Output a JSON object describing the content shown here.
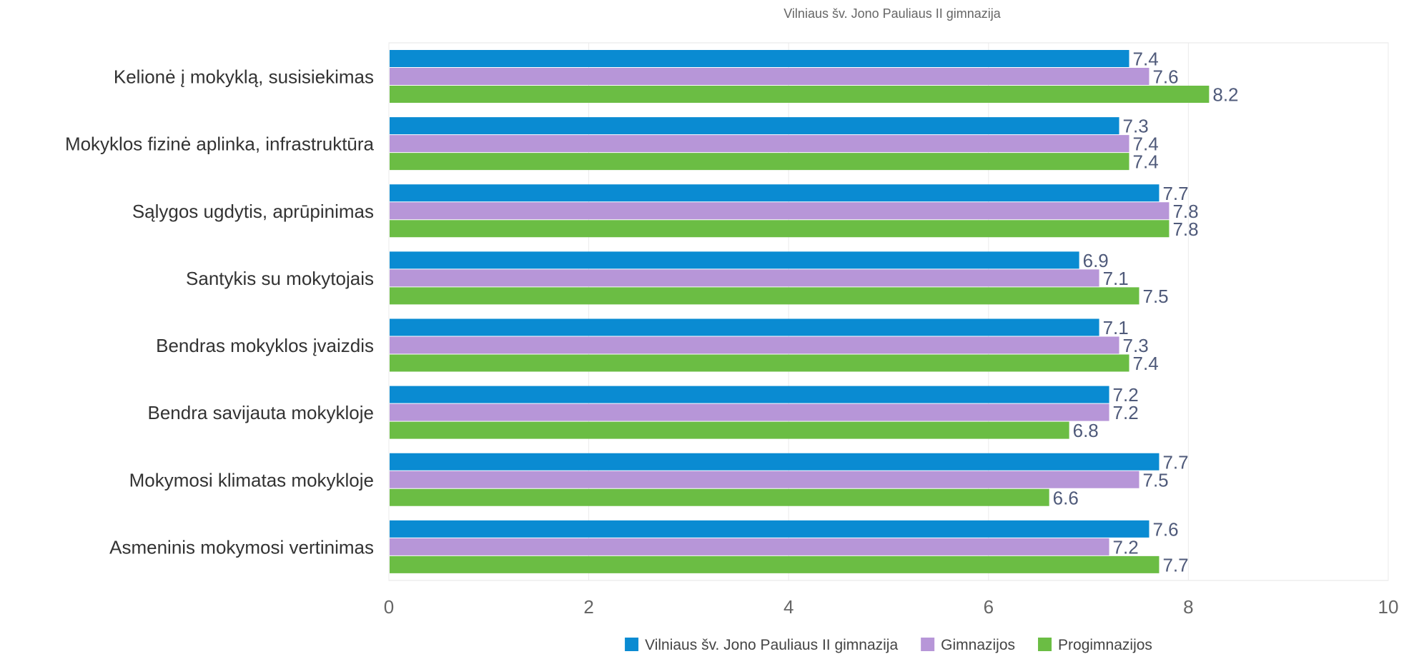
{
  "chart_data": {
    "type": "bar",
    "orientation": "horizontal",
    "title": "Vilniaus šv. Jono Pauliaus II gimnazija",
    "xlabel": "",
    "ylabel": "",
    "xlim": [
      0,
      10
    ],
    "xticks": [
      "0",
      "2",
      "4",
      "6",
      "8",
      "10"
    ],
    "grid": true,
    "legend_position": "bottom",
    "categories": [
      "Kelionė į mokyklą, susisiekimas",
      "Mokyklos fizinė aplinka, infrastruktūra",
      "Sąlygos ugdytis, aprūpinimas",
      "Santykis su mokytojais",
      "Bendras mokyklos įvaizdis",
      "Bendra savijauta mokykloje",
      "Mokymosi klimatas mokykloje",
      "Asmeninis mokymosi vertinimas"
    ],
    "series": [
      {
        "name": "Vilniaus šv. Jono Pauliaus II gimnazija",
        "color": "#0a8bd2",
        "values": [
          7.4,
          7.3,
          7.7,
          6.9,
          7.1,
          7.2,
          7.7,
          7.6
        ]
      },
      {
        "name": "Gimnazijos",
        "color": "#b796d8",
        "values": [
          7.6,
          7.4,
          7.8,
          7.1,
          7.3,
          7.2,
          7.5,
          7.2
        ]
      },
      {
        "name": "Progimnazijos",
        "color": "#6bbd44",
        "values": [
          8.2,
          7.4,
          7.8,
          7.5,
          7.4,
          6.8,
          6.6,
          7.7
        ]
      }
    ]
  }
}
